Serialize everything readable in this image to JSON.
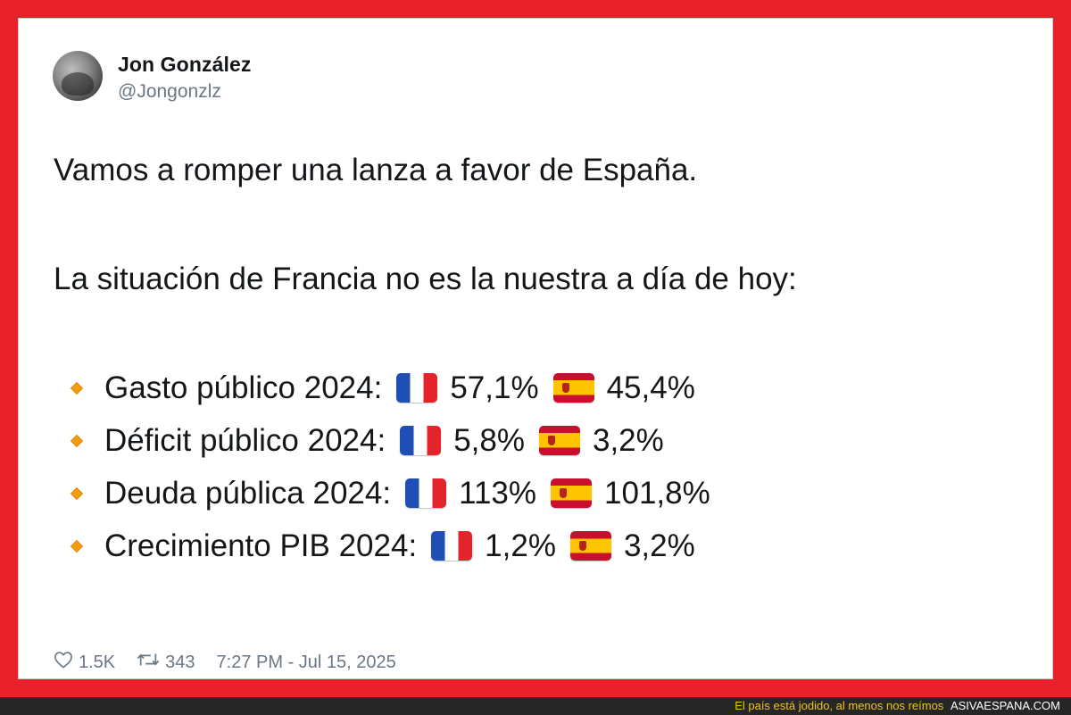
{
  "author": {
    "display_name": "Jon González",
    "handle": "@Jongonzlz"
  },
  "tweet": {
    "line1": "Vamos a romper una lanza a favor de España.",
    "line2": "La situación de Francia no es la nuestra a día de hoy:",
    "bullets": [
      {
        "label": "Gasto público 2024:",
        "france": "57,1%",
        "spain": "45,4%"
      },
      {
        "label": "Déficit público 2024:",
        "france": "5,8%",
        "spain": "3,2%"
      },
      {
        "label": "Deuda pública 2024:",
        "france": "113%",
        "spain": "101,8%"
      },
      {
        "label": "Crecimiento PIB 2024:",
        "france": "1,2%",
        "spain": "3,2%"
      }
    ]
  },
  "stats": {
    "likes": "1.5K",
    "retweets": "343",
    "timestamp": "7:27 PM - Jul 15, 2025"
  },
  "icons": {
    "bullet": "orange-diamond-icon",
    "france_flag": "flag-france-icon",
    "spain_flag": "flag-spain-icon",
    "like": "heart-icon",
    "retweet": "retweet-icon"
  },
  "colors": {
    "frame": "#e8212a",
    "bullet": "#f39c12",
    "caption_text": "#f1c40f"
  },
  "caption": {
    "text": "El país está jodido, al menos nos reímos",
    "site": "ASIVAESPANA.COM"
  }
}
